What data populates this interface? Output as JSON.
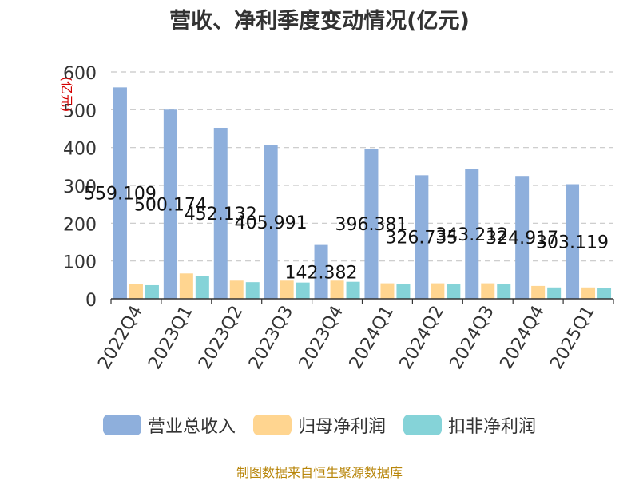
{
  "chart_data": {
    "type": "bar",
    "title": "营收、净利季度变动情况(亿元)",
    "ylabel": "(亿元)",
    "ylim": [
      0,
      600
    ],
    "yticks": [
      0,
      100,
      200,
      300,
      400,
      500,
      600
    ],
    "grid": true,
    "legend_position": "bottom",
    "categories": [
      "2022Q4",
      "2023Q1",
      "2023Q2",
      "2023Q3",
      "2023Q4",
      "2024Q1",
      "2024Q2",
      "2024Q3",
      "2024Q4",
      "2025Q1"
    ],
    "series": [
      {
        "name": "营业总收入",
        "color": "#8eafdc",
        "labeled": true,
        "values": [
          559.109,
          500.174,
          452.132,
          405.991,
          142.382,
          396.381,
          326.735,
          343.212,
          324.917,
          303.119
        ]
      },
      {
        "name": "归母净利润",
        "color": "#ffd590",
        "labeled": false,
        "values": [
          40,
          67,
          48,
          48,
          48,
          41,
          41,
          41,
          34,
          30
        ]
      },
      {
        "name": "扣非净利润",
        "color": "#85d3d8",
        "labeled": false,
        "values": [
          36,
          60,
          44,
          43,
          45,
          38,
          38,
          38,
          30,
          29
        ]
      }
    ]
  },
  "source": "制图数据来自恒生聚源数据库"
}
